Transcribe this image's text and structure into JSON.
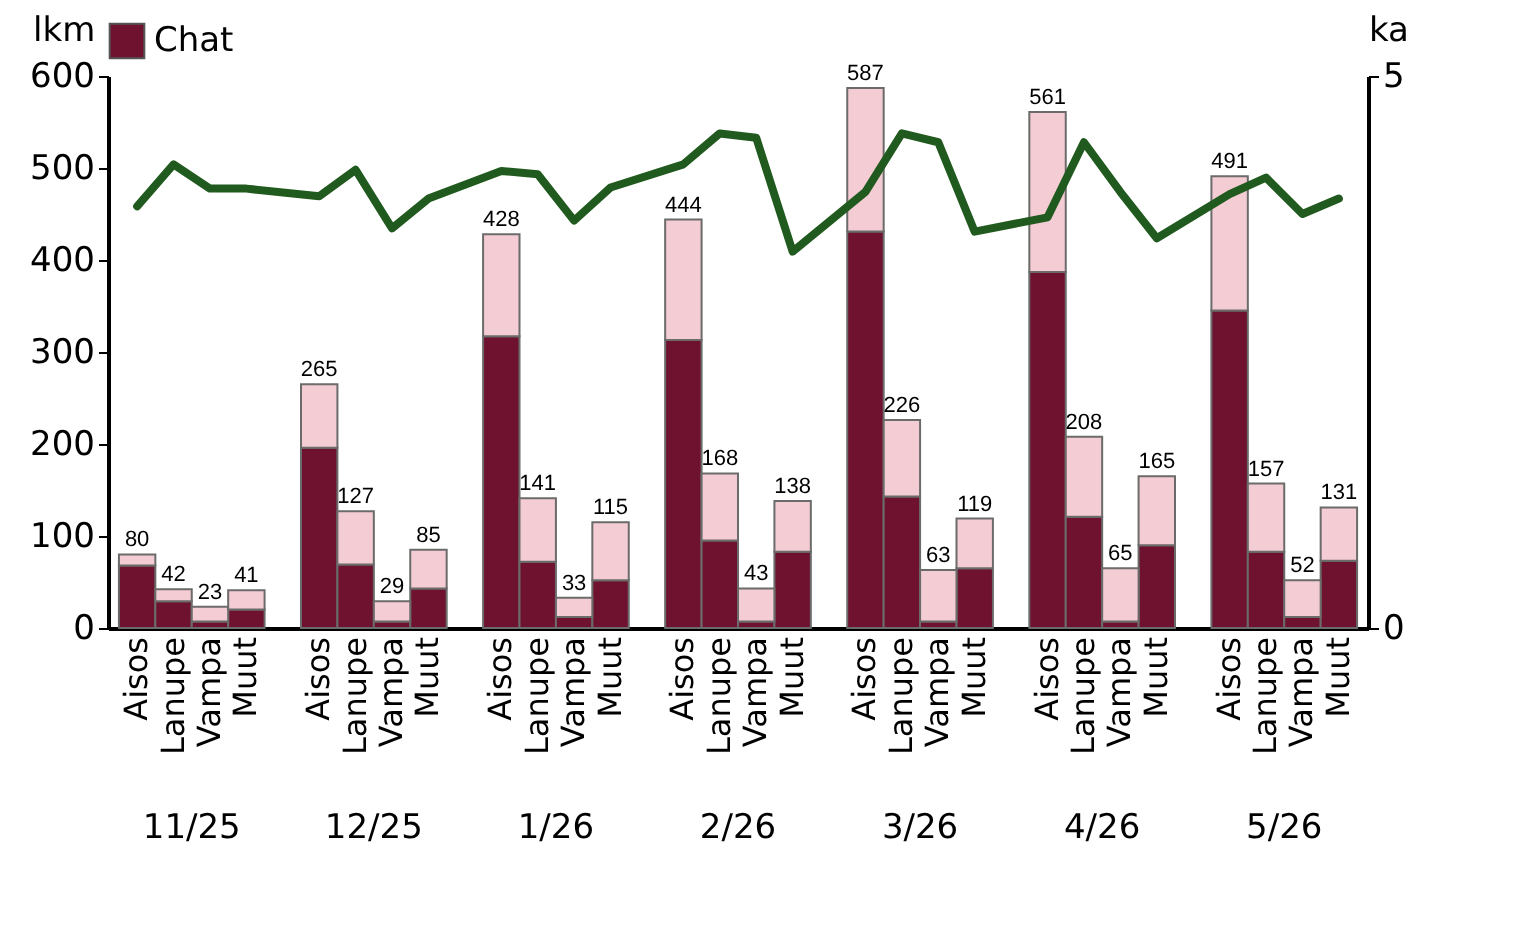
{
  "chart_data": {
    "type": "bar",
    "stacked": true,
    "legend": "top",
    "ylabel": "lkm",
    "y2label": "ka",
    "categories": [
      "Aisos",
      "Lanupe",
      "Vampa",
      "Muut",
      "Aisos",
      "Lanupe",
      "Vampa",
      "Muut",
      "Aisos",
      "Lanupe",
      "Vampa",
      "Muut",
      "Aisos",
      "Lanupe",
      "Vampa",
      "Muut",
      "Aisos",
      "Lanupe",
      "Vampa",
      "Muut",
      "Aisos",
      "Lanupe",
      "Vampa",
      "Muut",
      "Aisos",
      "Lanupe",
      "Vampa",
      "Muut"
    ],
    "annotations": [
      "11/25",
      "12/25",
      "1/26",
      "2/26",
      "3/26",
      "4/26",
      "5/26"
    ],
    "series": [
      {
        "name": "Chat",
        "color": "#6e1230",
        "values": [
          68,
          29,
          7,
          20,
          196,
          69,
          7,
          43,
          317,
          72,
          12,
          52,
          313,
          95,
          7,
          83,
          431,
          143,
          7,
          65,
          387,
          121,
          7,
          90,
          345,
          83,
          12,
          73
        ]
      },
      {
        "color": "#f4ccd4",
        "values": [
          12,
          13,
          16,
          21,
          69,
          58,
          22,
          42,
          111,
          69,
          21,
          63,
          131,
          73,
          36,
          55,
          156,
          83,
          56,
          54,
          174,
          87,
          58,
          75,
          146,
          74,
          40,
          58
        ]
      },
      {
        "type": "line",
        "axis": "y2",
        "color": "#215a1e",
        "values": [
          3.82,
          4.2,
          3.98,
          3.98,
          3.91,
          4.15,
          3.62,
          3.89,
          4.14,
          4.11,
          3.69,
          3.99,
          4.2,
          4.48,
          4.44,
          3.41,
          3.95,
          4.48,
          4.4,
          3.59,
          3.72,
          4.4,
          3.95,
          3.53,
          3.93,
          4.08,
          3.75,
          3.89
        ]
      }
    ],
    "totals": [
      "80",
      "42",
      "23",
      "41",
      "265",
      "127",
      "29",
      "85",
      "428",
      "141",
      "33",
      "115",
      "444",
      "168",
      "43",
      "138",
      "587",
      "226",
      "63",
      "119",
      "561",
      "208",
      "65",
      "165",
      "491",
      "157",
      "52",
      "131"
    ],
    "ylim": [
      0,
      600
    ],
    "yticks": [
      0,
      100,
      200,
      300,
      400,
      500,
      600
    ],
    "y2lim": [
      0,
      5
    ],
    "y2ticks": [
      0,
      5
    ]
  }
}
